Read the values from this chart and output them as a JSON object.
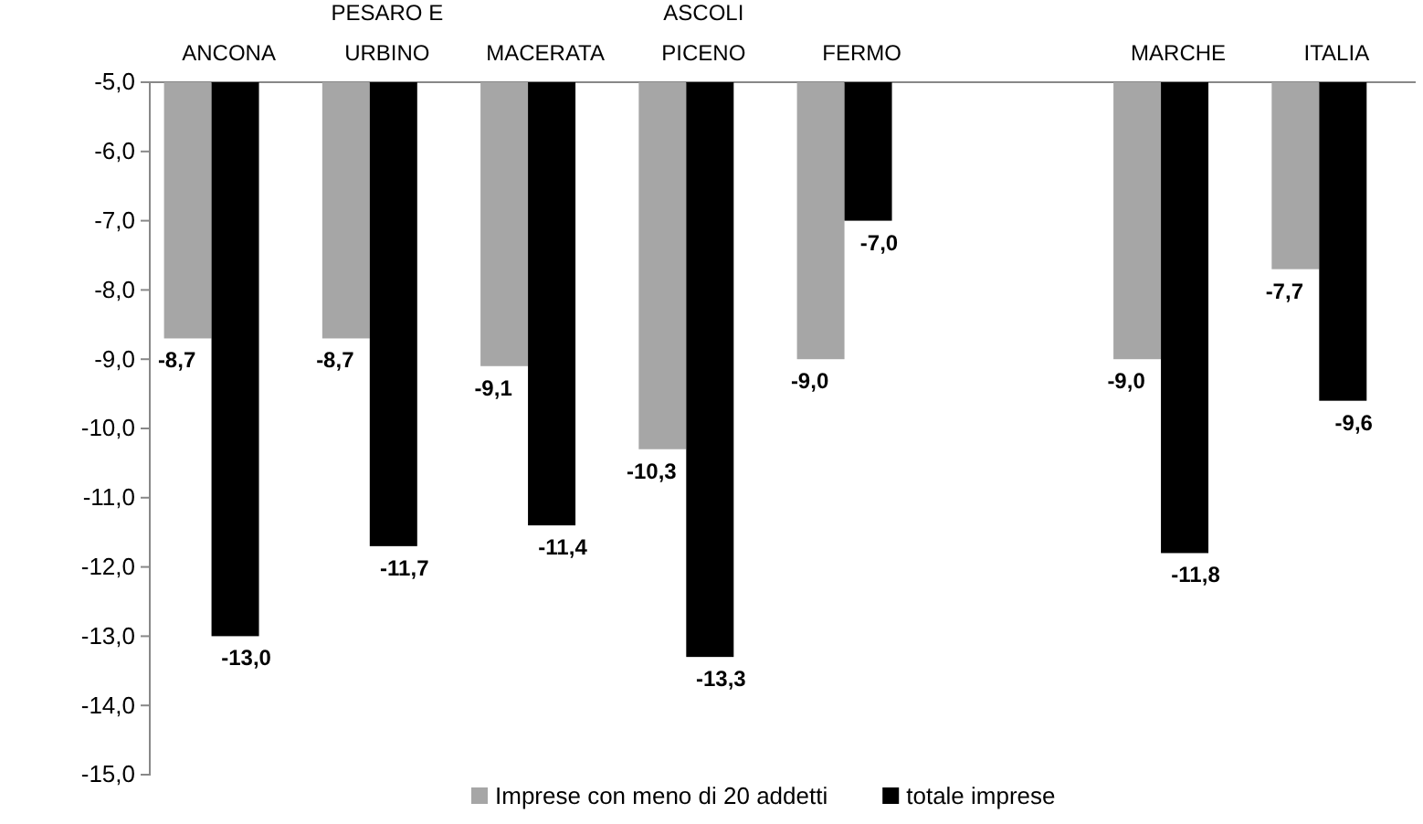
{
  "chart_data": {
    "type": "bar",
    "categories": [
      "ANCONA",
      "PESARO E URBINO",
      "MACERATA",
      "ASCOLI PICENO",
      "FERMO",
      null,
      "MARCHE",
      "ITALIA"
    ],
    "series": [
      {
        "name": "Imprese con meno di 20 addetti",
        "color": "#a6a6a6",
        "values": [
          -8.7,
          -8.7,
          -9.1,
          -10.3,
          -9.0,
          null,
          -9.0,
          -7.7
        ],
        "value_labels": [
          "-8,7",
          "-8,7",
          "-9,1",
          "-10,3",
          "-9,0",
          null,
          "-9,0",
          "-7,7"
        ]
      },
      {
        "name": "totale imprese",
        "color": "#000000",
        "values": [
          -13.0,
          -11.7,
          -11.4,
          -13.3,
          -7.0,
          null,
          -11.8,
          -9.6
        ],
        "value_labels": [
          "-13,0",
          "-11,7",
          "-11,4",
          "-13,3",
          "-7,0",
          null,
          "-11,8",
          "-9,6"
        ]
      }
    ],
    "ylim": [
      -15,
      -5
    ],
    "yticks": [
      {
        "value": -15,
        "label": "-15,0"
      },
      {
        "value": -14,
        "label": "-14,0"
      },
      {
        "value": -13,
        "label": "-13,0"
      },
      {
        "value": -12,
        "label": "-12,0"
      },
      {
        "value": -11,
        "label": "-11,0"
      },
      {
        "value": -10,
        "label": "-10,0"
      },
      {
        "value": -9,
        "label": "-9,0"
      },
      {
        "value": -8,
        "label": "-8,0"
      },
      {
        "value": -7,
        "label": "-7,0"
      },
      {
        "value": -6,
        "label": "-6,0"
      },
      {
        "value": -5,
        "label": "-5,0"
      }
    ],
    "grid": false,
    "legend": "bottom"
  }
}
